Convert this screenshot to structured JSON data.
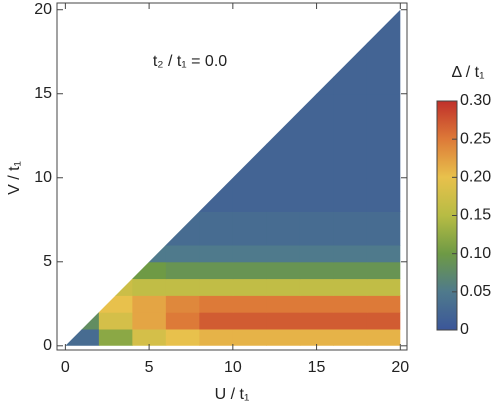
{
  "chart_data": {
    "type": "heatmap",
    "xlabel": "U / t₁",
    "ylabel": "V / t₁",
    "annotation": "t₂ / t₁ = 0.0",
    "colorbar_title": "Δ / t₁",
    "xlim": [
      -0.5,
      20.4
    ],
    "ylim": [
      -0.25,
      20.4
    ],
    "xticks": [
      0,
      5,
      10,
      15,
      20
    ],
    "yticks": [
      0,
      5,
      10,
      15,
      20
    ],
    "x_bins": [
      0,
      2,
      4,
      6,
      8,
      10,
      12,
      14,
      16,
      18,
      20
    ],
    "y_bins": [
      0,
      1,
      2,
      3,
      4,
      5,
      6,
      8,
      10,
      15,
      20
    ],
    "values": [
      [
        0.03,
        0.12,
        0.18,
        0.2,
        0.21,
        0.21,
        0.21,
        0.21,
        0.21,
        0.21
      ],
      [
        0.08,
        0.18,
        0.22,
        0.25,
        0.27,
        0.27,
        0.27,
        0.27,
        0.27,
        0.27
      ],
      [
        null,
        0.2,
        0.22,
        0.24,
        0.25,
        0.25,
        0.25,
        0.25,
        0.25,
        0.25
      ],
      [
        null,
        0.17,
        0.16,
        0.16,
        0.16,
        0.16,
        0.16,
        0.16,
        0.16,
        0.16
      ],
      [
        null,
        null,
        0.1,
        0.09,
        0.09,
        0.09,
        0.09,
        0.09,
        0.09,
        0.09
      ],
      [
        null,
        null,
        0.05,
        0.05,
        0.05,
        0.05,
        0.05,
        0.05,
        0.05,
        0.05
      ],
      [
        null,
        null,
        null,
        0.03,
        0.03,
        0.03,
        0.03,
        0.03,
        0.03,
        0.03
      ],
      [
        null,
        null,
        null,
        null,
        0.02,
        0.02,
        0.02,
        0.02,
        0.02,
        0.02
      ],
      [
        null,
        null,
        null,
        null,
        null,
        0.02,
        0.02,
        0.02,
        0.02,
        0.02
      ],
      [
        null,
        null,
        null,
        null,
        null,
        null,
        null,
        0.02,
        0.02,
        0.02
      ]
    ],
    "clim": [
      0,
      0.3
    ],
    "colorscale": [
      [
        0,
        "#3b5699"
      ],
      [
        0.05,
        "#4f7a8c"
      ],
      [
        0.1,
        "#6e9a45"
      ],
      [
        0.15,
        "#b7bc44"
      ],
      [
        0.2,
        "#e8c14c"
      ],
      [
        0.25,
        "#dd7a38"
      ],
      [
        0.3,
        "#c0302a"
      ]
    ],
    "cticks": [
      0,
      0.05,
      {
        "value": 0.1,
        "label": "0.10"
      },
      0.15,
      {
        "value": 0.2,
        "label": "0.20"
      },
      0.25,
      {
        "value": 0.3,
        "label": "0.30"
      }
    ]
  }
}
